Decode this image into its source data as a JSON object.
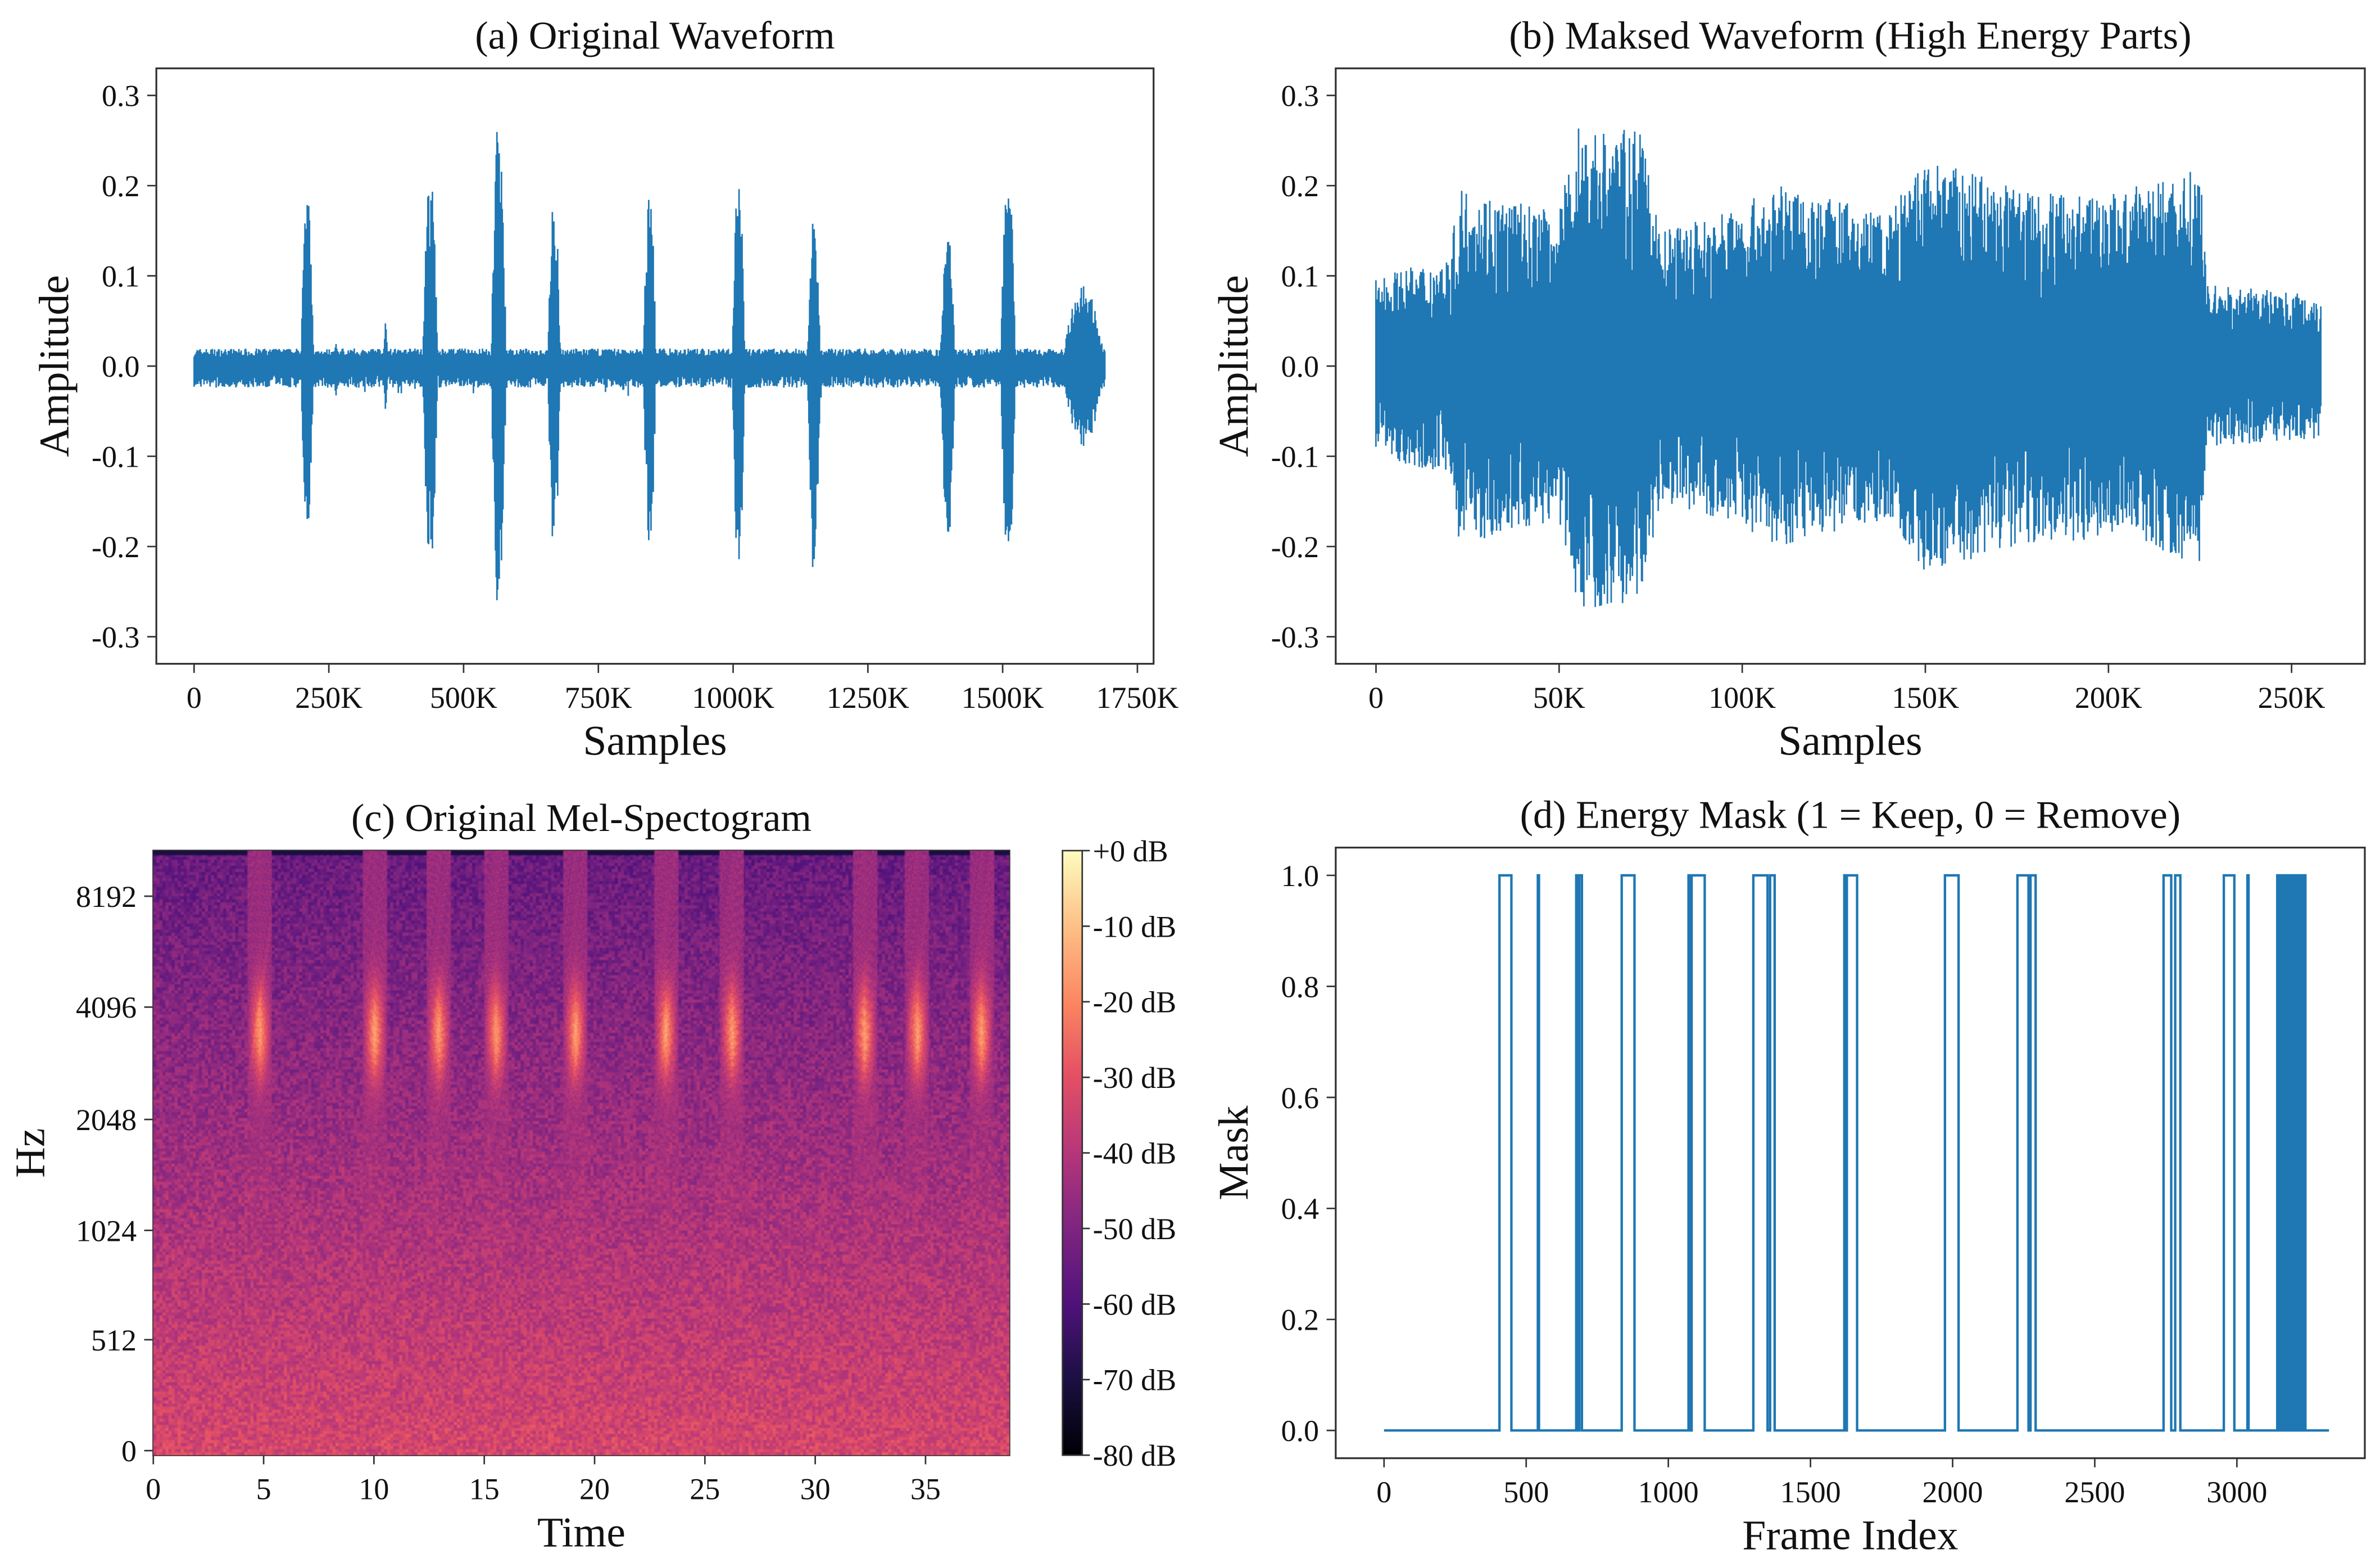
{
  "colors": {
    "line": "#1f77b4",
    "axis": "#333333"
  },
  "chart_data": [
    {
      "type": "line",
      "id": "a",
      "title": "(a) Original Waveform",
      "xlabel": "Samples",
      "ylabel": "Amplitude",
      "xlim": [
        -70,
        1780
      ],
      "ylim": [
        -0.33,
        0.33
      ],
      "xticks": [
        0,
        250,
        500,
        750,
        1000,
        1250,
        1500,
        1750
      ],
      "xtick_labels": [
        "0",
        "250K",
        "500K",
        "750K",
        "1000K",
        "1250K",
        "1500K",
        "1750K"
      ],
      "yticks": [
        0.3,
        0.2,
        0.1,
        0.0,
        -0.1,
        -0.2,
        -0.3
      ],
      "ytick_labels": [
        "0.3",
        "0.2",
        "0.1",
        "0.0",
        "-0.1",
        "-0.2",
        "-0.3"
      ],
      "x_end_k": 1690,
      "baseline_amp": 0.015,
      "bursts": [
        {
          "x": 210,
          "w": 12,
          "max": 0.2,
          "min": -0.19
        },
        {
          "x": 438,
          "w": 14,
          "max": 0.22,
          "min": -0.23
        },
        {
          "x": 565,
          "w": 14,
          "max": 0.29,
          "min": -0.29
        },
        {
          "x": 668,
          "w": 12,
          "max": 0.19,
          "min": -0.21
        },
        {
          "x": 845,
          "w": 12,
          "max": 0.21,
          "min": -0.22
        },
        {
          "x": 1010,
          "w": 12,
          "max": 0.22,
          "min": -0.24
        },
        {
          "x": 1150,
          "w": 12,
          "max": 0.17,
          "min": -0.24
        },
        {
          "x": 1398,
          "w": 14,
          "max": 0.15,
          "min": -0.2
        },
        {
          "x": 1510,
          "w": 14,
          "max": 0.22,
          "min": -0.23
        },
        {
          "x": 265,
          "w": 6,
          "max": 0.03,
          "min": -0.04
        },
        {
          "x": 355,
          "w": 5,
          "max": 0.05,
          "min": -0.05
        },
        {
          "x": 1650,
          "w": 40,
          "max": 0.09,
          "min": -0.09
        }
      ]
    },
    {
      "type": "line",
      "id": "b",
      "title": "(b) Maksed Waveform (High Energy Parts)",
      "xlabel": "Samples",
      "ylabel": "Amplitude",
      "xlim": [
        -11,
        270
      ],
      "ylim": [
        -0.33,
        0.33
      ],
      "xticks": [
        0,
        50,
        100,
        150,
        200,
        250
      ],
      "xtick_labels": [
        "0",
        "50K",
        "100K",
        "150K",
        "200K",
        "250K"
      ],
      "yticks": [
        0.3,
        0.2,
        0.1,
        0.0,
        -0.1,
        -0.2,
        -0.3
      ],
      "ytick_labels": [
        "0.3",
        "0.2",
        "0.1",
        "0.0",
        "-0.1",
        "-0.2",
        "-0.3"
      ],
      "x_end_k": 258,
      "envelope": [
        [
          0,
          0.1
        ],
        [
          20,
          0.12
        ],
        [
          23,
          0.2
        ],
        [
          50,
          0.17
        ],
        [
          55,
          0.27
        ],
        [
          72,
          0.26
        ],
        [
          78,
          0.15
        ],
        [
          100,
          0.18
        ],
        [
          110,
          0.2
        ],
        [
          140,
          0.17
        ],
        [
          150,
          0.23
        ],
        [
          175,
          0.2
        ],
        [
          200,
          0.19
        ],
        [
          225,
          0.22
        ],
        [
          227,
          0.09
        ],
        [
          258,
          0.08
        ]
      ]
    },
    {
      "type": "heatmap",
      "id": "c",
      "title": "(c) Original Mel-Spectogram",
      "xlabel": "Time",
      "ylabel": "Hz",
      "xlim": [
        0,
        38.8
      ],
      "xticks": [
        0,
        5,
        10,
        15,
        20,
        25,
        30,
        35
      ],
      "xtick_labels": [
        "0",
        "5",
        "10",
        "15",
        "20",
        "25",
        "30",
        "35"
      ],
      "ytick_labels": [
        "8192",
        "4096",
        "2048",
        "1024",
        "512",
        "0"
      ],
      "colorbar": {
        "range_db": [
          -80,
          0
        ],
        "labels": [
          "+0 dB",
          "-10 dB",
          "-20 dB",
          "-30 dB",
          "-40 dB",
          "-50 dB",
          "-60 dB",
          "-70 dB",
          "-80 dB"
        ],
        "colormap": "magma"
      },
      "events_s": [
        4.8,
        10,
        12.9,
        15.5,
        19.1,
        23.2,
        26.2,
        32.2,
        34.6,
        37.5
      ]
    },
    {
      "type": "line",
      "id": "d",
      "title": "(d) Energy Mask (1 = Keep, 0 = Remove)",
      "xlabel": "Frame Index",
      "ylabel": "Mask",
      "xlim": [
        -170,
        3450
      ],
      "ylim": [
        -0.05,
        1.05
      ],
      "xticks": [
        0,
        500,
        1000,
        1500,
        2000,
        2500,
        3000
      ],
      "xtick_labels": [
        "0",
        "500",
        "1000",
        "1500",
        "2000",
        "2500",
        "3000"
      ],
      "yticks": [
        0.0,
        0.2,
        0.4,
        0.6,
        0.8,
        1.0
      ],
      "ytick_labels": [
        "0.0",
        "0.2",
        "0.4",
        "0.6",
        "0.8",
        "1.0"
      ],
      "x_end": 3324,
      "keep_intervals": [
        [
          406,
          448
        ],
        [
          541,
          545
        ],
        [
          676,
          682
        ],
        [
          687,
          696
        ],
        [
          836,
          881
        ],
        [
          1071,
          1076
        ],
        [
          1082,
          1128
        ],
        [
          1299,
          1349
        ],
        [
          1358,
          1374
        ],
        [
          1619,
          1624
        ],
        [
          1628,
          1664
        ],
        [
          1973,
          2021
        ],
        [
          2228,
          2267
        ],
        [
          2274,
          2292
        ],
        [
          2742,
          2769
        ],
        [
          2783,
          2801
        ],
        [
          2954,
          2991
        ],
        [
          3037,
          3041
        ]
      ],
      "dense_interval": [
        3142,
        3242
      ]
    }
  ]
}
